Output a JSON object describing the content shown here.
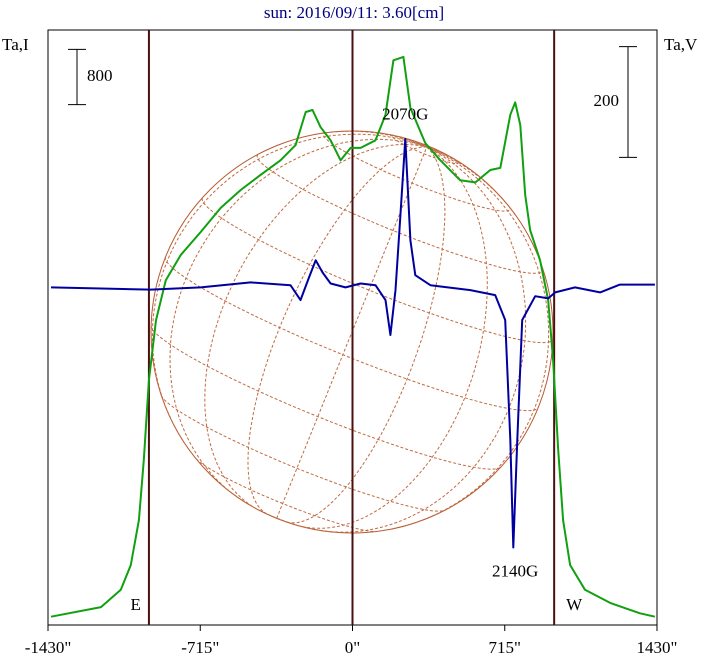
{
  "chart_data": {
    "type": "line",
    "title": "sun: 2016/09/11: 3.60[cm]",
    "ylabel": "Ta,I",
    "y2label": "Ta,V",
    "xlim": [
      -1430,
      1430
    ],
    "xticks": [
      {
        "value": -1430,
        "label": "-1430\""
      },
      {
        "value": -715,
        "label": "-715\""
      },
      {
        "value": 0,
        "label": "0\""
      },
      {
        "value": 715,
        "label": "715\""
      },
      {
        "value": 1430,
        "label": "1430\""
      }
    ],
    "ylim": [
      0,
      8630
    ],
    "y2lim": [
      -610,
      465
    ],
    "y_scale_bar": 800,
    "y2_scale_bar": 200,
    "series": [
      {
        "name": "Ta,I",
        "color": "#10a010",
        "x": [
          -1416,
          -1181,
          -1088,
          -1041,
          -1003,
          -980,
          -956,
          -923,
          -877,
          -806,
          -713,
          -619,
          -525,
          -431,
          -338,
          -267,
          -220,
          -188,
          -150,
          -103,
          -56,
          -9,
          38,
          108,
          155,
          192,
          239,
          272,
          342,
          413,
          506,
          577,
          647,
          694,
          741,
          764,
          788,
          811,
          834,
          881,
          919,
          942,
          966,
          989,
          1022,
          1092,
          1210,
          1350,
          1420
        ],
        "values": [
          120,
          260,
          510,
          870,
          1520,
          2390,
          3550,
          4420,
          5000,
          5370,
          5700,
          6050,
          6310,
          6530,
          6740,
          6960,
          7440,
          7470,
          7220,
          7030,
          6740,
          6920,
          6920,
          7030,
          7400,
          8190,
          8240,
          7500,
          6990,
          6740,
          6450,
          6420,
          6600,
          6630,
          7400,
          7580,
          7250,
          6240,
          5730,
          5290,
          4710,
          3840,
          2540,
          1520,
          870,
          510,
          320,
          170,
          120
        ]
      },
      {
        "name": "Ta,V",
        "color": "#0000a0",
        "axis": "y2",
        "x": [
          -1416,
          -1181,
          -947,
          -713,
          -478,
          -291,
          -244,
          -206,
          -173,
          -141,
          -103,
          -33,
          38,
          108,
          155,
          178,
          202,
          225,
          248,
          272,
          295,
          366,
          553,
          670,
          717,
          741,
          755,
          774,
          797,
          858,
          919,
          952,
          1045,
          1163,
          1256,
          1420
        ],
        "values": [
          0,
          -2,
          -4,
          0,
          9,
          4,
          -23,
          16,
          49,
          27,
          7,
          0,
          7,
          4,
          -23,
          -86,
          -5,
          130,
          268,
          85,
          22,
          4,
          -5,
          -14,
          -59,
          -275,
          -470,
          -275,
          -59,
          -16,
          -20,
          -9,
          0,
          -9,
          5,
          5
        ]
      }
    ],
    "limb_lines": [
      {
        "x": -956,
        "label": "E"
      },
      {
        "x": 0
      },
      {
        "x": 947,
        "label": "W"
      }
    ],
    "annotations": [
      {
        "text": "2070G",
        "x": 248,
        "y": 310
      },
      {
        "text": "2140G",
        "x": 764,
        "y": -515
      }
    ]
  }
}
